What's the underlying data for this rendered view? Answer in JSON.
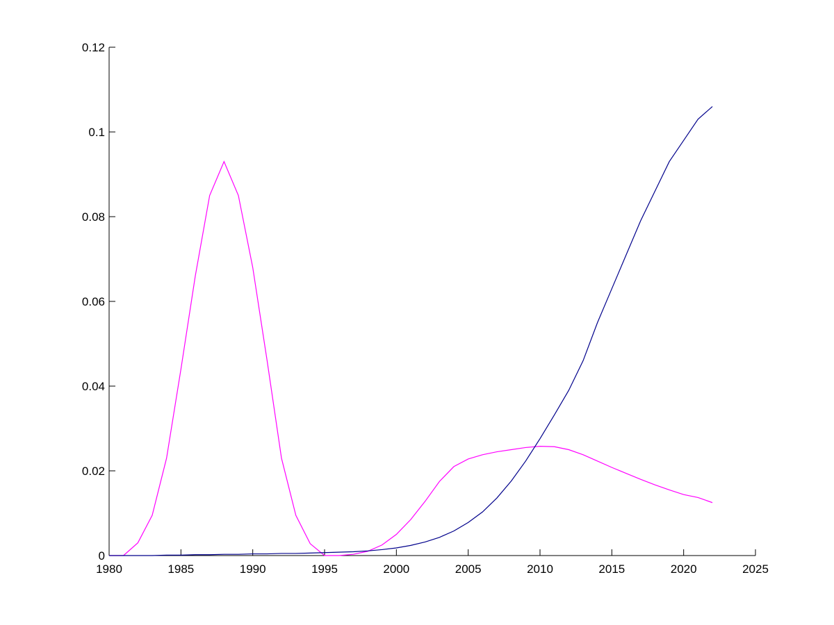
{
  "chart_data": {
    "type": "line",
    "x": [
      1980,
      1981,
      1982,
      1983,
      1984,
      1985,
      1986,
      1987,
      1988,
      1989,
      1990,
      1991,
      1992,
      1993,
      1994,
      1995,
      1996,
      1997,
      1998,
      1999,
      2000,
      2001,
      2002,
      2003,
      2004,
      2005,
      2006,
      2007,
      2008,
      2009,
      2010,
      2011,
      2012,
      2013,
      2014,
      2015,
      2016,
      2017,
      2018,
      2019,
      2020,
      2021,
      2022
    ],
    "series": [
      {
        "color": "#ff00ff",
        "values": [
          0,
          0,
          0.003,
          0.0095,
          0.023,
          0.044,
          0.066,
          0.085,
          0.093,
          0.085,
          0.068,
          0.046,
          0.023,
          0.0095,
          0.0028,
          0,
          0,
          0.0003,
          0.001,
          0.0025,
          0.005,
          0.0085,
          0.0128,
          0.0175,
          0.021,
          0.0228,
          0.0238,
          0.0245,
          0.025,
          0.0255,
          0.0258,
          0.0257,
          0.025,
          0.0238,
          0.0223,
          0.0208,
          0.0194,
          0.018,
          0.0167,
          0.0155,
          0.0144,
          0.0137,
          0.0125
        ]
      },
      {
        "color": "#00008b",
        "values": [
          0,
          0,
          0,
          0,
          0.0001,
          0.0001,
          0.0002,
          0.0002,
          0.0003,
          0.0003,
          0.0004,
          0.0004,
          0.0005,
          0.0005,
          0.0006,
          0.0007,
          0.0008,
          0.0009,
          0.0011,
          0.0014,
          0.0018,
          0.0024,
          0.0032,
          0.0043,
          0.0058,
          0.0078,
          0.0103,
          0.0136,
          0.0176,
          0.0223,
          0.0276,
          0.0332,
          0.039,
          0.046,
          0.055,
          0.063,
          0.071,
          0.079,
          0.086,
          0.093,
          0.098,
          0.103,
          0.106
        ]
      }
    ],
    "xlim": [
      1980,
      2025
    ],
    "xticks": [
      1980,
      1985,
      1990,
      1995,
      2000,
      2005,
      2010,
      2015,
      2020,
      2025
    ],
    "ylim": [
      0,
      0.12
    ],
    "yticks": [
      0,
      0.02,
      0.04,
      0.06,
      0.08,
      0.1,
      0.12
    ]
  }
}
